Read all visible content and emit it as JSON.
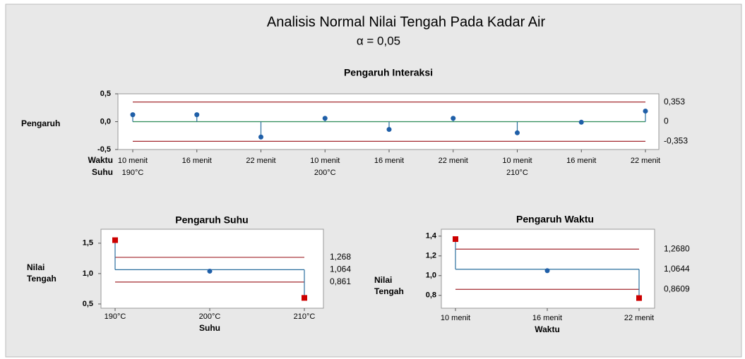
{
  "title": "Analisis Normal Nilai Tengah Pada Kadar Air",
  "subtitle": "α = 0,05",
  "chart_data": [
    {
      "type": "anom",
      "title": "Pengaruh Interaksi",
      "y_label": "Pengaruh",
      "x_row_labels": [
        "Waktu",
        "Suhu"
      ],
      "categories": [
        "10 menit",
        "16 menit",
        "22 menit",
        "10 menit",
        "16 menit",
        "22 menit",
        "10 menit",
        "16 menit",
        "22 menit"
      ],
      "group_labels": [
        "190°C",
        null,
        null,
        "200°C",
        null,
        null,
        "210°C",
        null,
        null
      ],
      "values": [
        0.125,
        0.125,
        -0.275,
        0.06,
        -0.14,
        0.06,
        -0.2,
        -0.01,
        0.19
      ],
      "point_colors": [
        "#1f5fa8",
        "#1f5fa8",
        "#1f5fa8",
        "#1f5fa8",
        "#1f5fa8",
        "#1f5fa8",
        "#1f5fa8",
        "#1f5fa8",
        "#1f5fa8"
      ],
      "ylim": [
        -0.5,
        0.5
      ],
      "yticks": [
        {
          "value": -0.5,
          "label": "-0,5"
        },
        {
          "value": 0,
          "label": "0,0"
        },
        {
          "value": 0.5,
          "label": "0,5"
        }
      ],
      "center": {
        "value": 0,
        "label": "0"
      },
      "limits": [
        {
          "value": 0.353,
          "label": "0,353"
        },
        {
          "value": -0.353,
          "label": "-0,353"
        }
      ],
      "center_color": "#2e8b57",
      "limit_color": "#a3282e",
      "stem_color": "#2a6f9e"
    },
    {
      "type": "anom",
      "title": "Pengaruh Suhu",
      "y_label": "Nilai Tengah",
      "x_label": "Suhu",
      "categories": [
        "190°C",
        "200°C",
        "210°C"
      ],
      "values": [
        1.55,
        1.04,
        0.6
      ],
      "point_colors": [
        "#cc0000",
        "#1f5fa8",
        "#cc0000"
      ],
      "ylim": [
        0.43,
        1.73
      ],
      "yticks": [
        {
          "value": 0.5,
          "label": "0,5"
        },
        {
          "value": 1.0,
          "label": "1,0"
        },
        {
          "value": 1.5,
          "label": "1,5"
        }
      ],
      "center": {
        "value": 1.064,
        "label": "1,064"
      },
      "limits": [
        {
          "value": 1.268,
          "label": "1,268"
        },
        {
          "value": 0.861,
          "label": "0,861"
        }
      ],
      "center_color": "#2a6f9e",
      "limit_color": "#a3282e",
      "stem_color": "#2a6f9e"
    },
    {
      "type": "anom",
      "title": "Pengaruh Waktu",
      "y_label": "Nilai Tengah",
      "x_label": "Waktu",
      "categories": [
        "10 menit",
        "16 menit",
        "22 menit"
      ],
      "values": [
        1.37,
        1.05,
        0.773
      ],
      "point_colors": [
        "#cc0000",
        "#1f5fa8",
        "#cc0000"
      ],
      "ylim": [
        0.67,
        1.47
      ],
      "yticks": [
        {
          "value": 0.8,
          "label": "0,8"
        },
        {
          "value": 1.0,
          "label": "1,0"
        },
        {
          "value": 1.2,
          "label": "1,2"
        },
        {
          "value": 1.4,
          "label": "1,4"
        }
      ],
      "center": {
        "value": 1.0644,
        "label": "1,0644"
      },
      "limits": [
        {
          "value": 1.268,
          "label": "1,2680"
        },
        {
          "value": 0.8609,
          "label": "0,8609"
        }
      ],
      "center_color": "#2a6f9e",
      "limit_color": "#a3282e",
      "stem_color": "#2a6f9e"
    }
  ]
}
